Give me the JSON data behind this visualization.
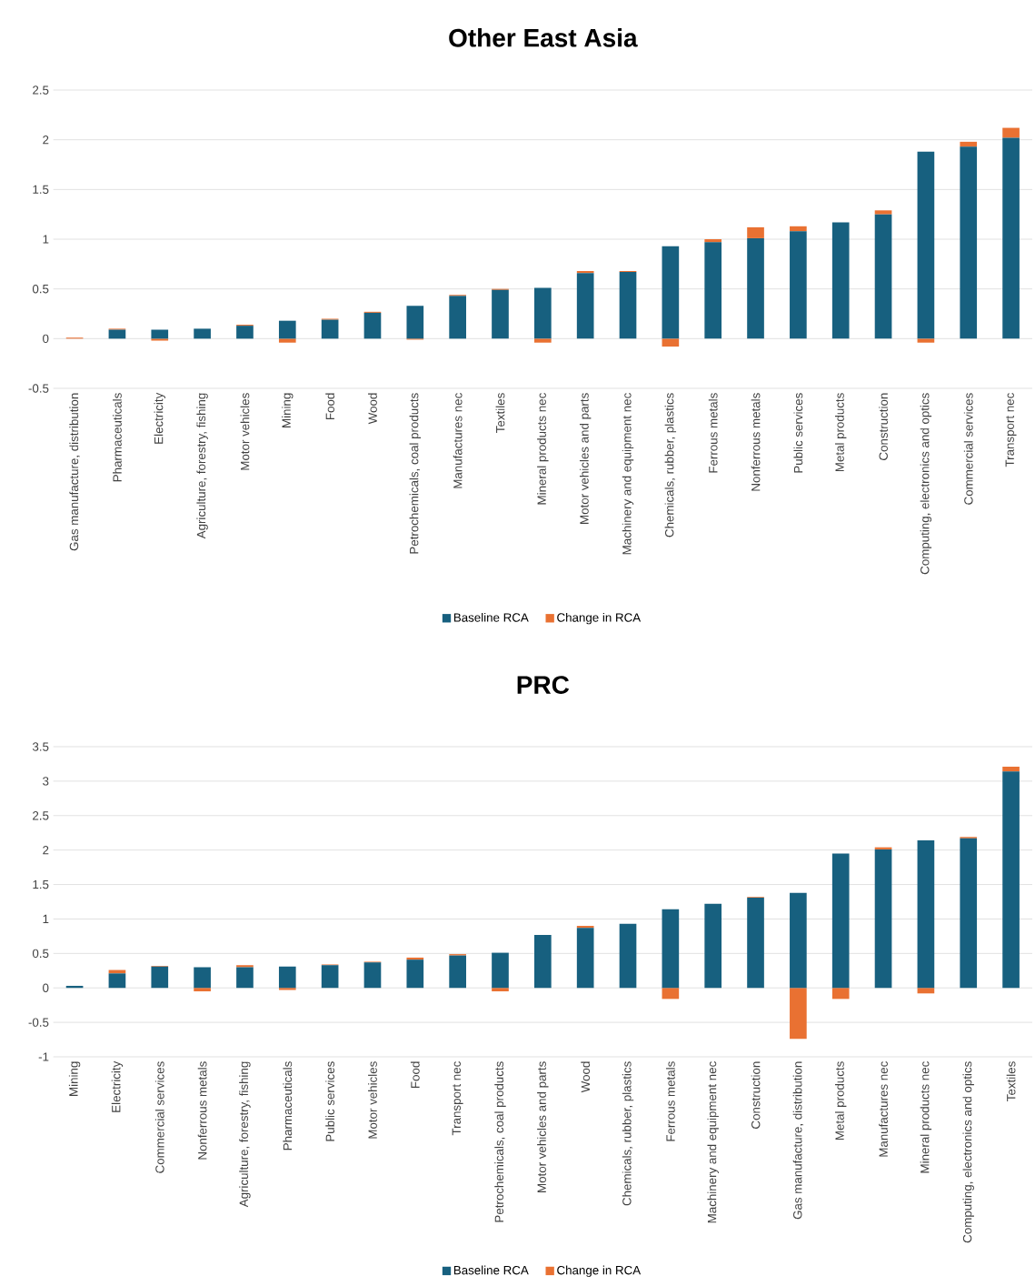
{
  "chart_data": [
    {
      "type": "bar",
      "title": "Other East Asia",
      "stacked": true,
      "grid": "y",
      "legend": "bottom",
      "categories": [
        "Gas manufacture, distribution",
        "Pharmaceuticals",
        "Electricity",
        "Agriculture, forestry, fishing",
        "Motor vehicles",
        "Mining",
        "Food",
        "Wood",
        "Petrochemicals, coal products",
        "Manufactures nec",
        "Textiles",
        "Mineral products nec",
        "Motor vehicles and parts",
        "Machinery and equipment nec",
        "Chemicals, rubber, plastics",
        "Ferrous metals",
        "Nonferrous metals",
        "Public services",
        "Metal products",
        "Construction",
        "Computing, electronics and optics",
        "Commercial services",
        "Transport nec"
      ],
      "series": [
        {
          "name": "Baseline RCA",
          "color": "#17607f",
          "values": [
            0,
            0.09,
            0.09,
            0.1,
            0.13,
            0.18,
            0.19,
            0.26,
            0.33,
            0.43,
            0.49,
            0.51,
            0.66,
            0.67,
            0.93,
            0.97,
            1.01,
            1.08,
            1.17,
            1.25,
            1.88,
            1.93,
            2.02
          ]
        },
        {
          "name": "Change in RCA",
          "color": "#e97132",
          "values": [
            0.01,
            0.01,
            -0.02,
            0,
            0.01,
            -0.04,
            0.01,
            0.01,
            -0.01,
            0.01,
            0.01,
            -0.04,
            0.02,
            0.01,
            -0.08,
            0.03,
            0.11,
            0.05,
            0,
            0.04,
            -0.04,
            0.05,
            0.1
          ]
        }
      ],
      "ylim": [
        -0.5,
        2.5
      ],
      "yticks": [
        -0.5,
        0,
        0.5,
        1,
        1.5,
        2,
        2.5
      ]
    },
    {
      "type": "bar",
      "title": "PRC",
      "stacked": true,
      "grid": "y",
      "legend": "bottom",
      "categories": [
        "Mining",
        "Electricity",
        "Commercial services",
        "Nonferrous metals",
        "Agriculture, forestry, fishing",
        "Pharmaceuticals",
        "Public services",
        "Motor vehicles",
        "Food",
        "Transport nec",
        "Petrochemicals, coal products",
        "Motor vehicles and parts",
        "Wood",
        "Chemicals, rubber, plastics",
        "Ferrous metals",
        "Machinery and equipment nec",
        "Construction",
        "Gas manufacture, distribution",
        "Metal products",
        "Manufactures nec",
        "Mineral products nec",
        "Computing, electronics and optics",
        "Textiles"
      ],
      "series": [
        {
          "name": "Baseline RCA",
          "color": "#17607f",
          "values": [
            0.03,
            0.21,
            0.31,
            0.3,
            0.3,
            0.31,
            0.33,
            0.37,
            0.41,
            0.47,
            0.51,
            0.77,
            0.87,
            0.93,
            1.14,
            1.22,
            1.31,
            1.38,
            1.95,
            2.01,
            2.14,
            2.17,
            3.14
          ]
        },
        {
          "name": "Change in RCA",
          "color": "#e97132",
          "values": [
            0,
            0.05,
            0.01,
            -0.05,
            0.03,
            -0.03,
            0.01,
            0.01,
            0.03,
            0.02,
            -0.05,
            0,
            0.03,
            0,
            -0.16,
            0,
            0.01,
            -0.74,
            -0.16,
            0.03,
            -0.08,
            0.02,
            0.07
          ]
        }
      ],
      "ylim": [
        -1,
        3.5
      ],
      "yticks": [
        -1,
        -0.5,
        0,
        0.5,
        1,
        1.5,
        2,
        2.5,
        3,
        3.5
      ]
    }
  ]
}
